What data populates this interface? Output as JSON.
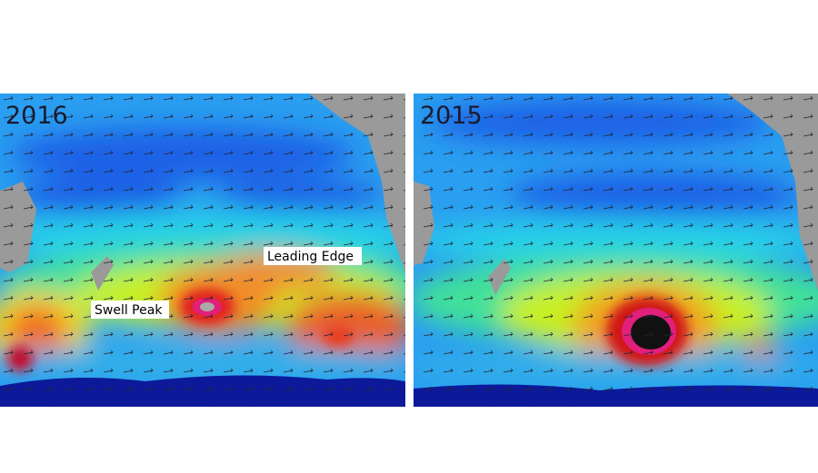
{
  "panels": [
    {
      "year": "2016",
      "labels": [
        "Leading Edge",
        "Swell Peak"
      ]
    },
    {
      "year": "2015"
    }
  ]
}
